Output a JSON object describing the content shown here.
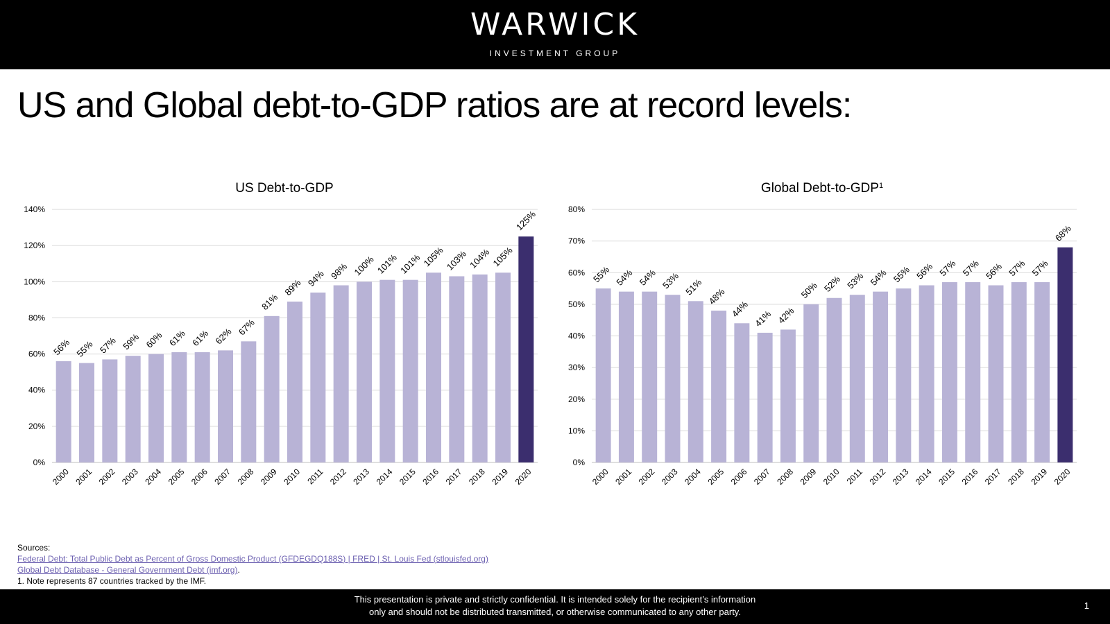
{
  "header": {
    "brand": "WARWICK",
    "sub_brand": "INVESTMENT GROUP"
  },
  "headline": "US and Global debt-to-GDP ratios are at record levels:",
  "colors": {
    "bar": "#b8b3d6",
    "highlight": "#3b2e6e",
    "grid": "#d9d9d9"
  },
  "chart_data": [
    {
      "type": "bar",
      "title": "US Debt-to-GDP",
      "categories": [
        "2000",
        "2001",
        "2002",
        "2003",
        "2004",
        "2005",
        "2006",
        "2007",
        "2008",
        "2009",
        "2010",
        "2011",
        "2012",
        "2013",
        "2014",
        "2015",
        "2016",
        "2017",
        "2018",
        "2019",
        "2020"
      ],
      "values": [
        56,
        55,
        57,
        59,
        60,
        61,
        61,
        62,
        67,
        81,
        89,
        94,
        98,
        100,
        101,
        101,
        105,
        103,
        104,
        105,
        125
      ],
      "data_labels": [
        "56%",
        "55%",
        "57%",
        "59%",
        "60%",
        "61%",
        "61%",
        "62%",
        "67%",
        "81%",
        "89%",
        "94%",
        "98%",
        "100%",
        "101%",
        "101%",
        "105%",
        "103%",
        "104%",
        "105%",
        "125%"
      ],
      "ylim": [
        0,
        140
      ],
      "yticks": [
        0,
        20,
        40,
        60,
        80,
        100,
        120,
        140
      ],
      "ytick_labels": [
        "0%",
        "20%",
        "40%",
        "60%",
        "80%",
        "100%",
        "120%",
        "140%"
      ],
      "highlight_category": "2020",
      "grid": true
    },
    {
      "type": "bar",
      "title": "Global Debt-to-GDP",
      "title_footnote": "1",
      "categories": [
        "2000",
        "2001",
        "2002",
        "2003",
        "2004",
        "2005",
        "2006",
        "2007",
        "2008",
        "2009",
        "2010",
        "2011",
        "2012",
        "2013",
        "2014",
        "2015",
        "2016",
        "2017",
        "2018",
        "2019",
        "2020"
      ],
      "values": [
        55,
        54,
        54,
        53,
        51,
        48,
        44,
        41,
        42,
        50,
        52,
        53,
        54,
        55,
        56,
        57,
        57,
        56,
        57,
        57,
        68
      ],
      "data_labels": [
        "55%",
        "54%",
        "54%",
        "53%",
        "51%",
        "48%",
        "44%",
        "41%",
        "42%",
        "50%",
        "52%",
        "53%",
        "54%",
        "55%",
        "56%",
        "57%",
        "57%",
        "56%",
        "57%",
        "57%",
        "68%"
      ],
      "ylim": [
        0,
        80
      ],
      "yticks": [
        0,
        10,
        20,
        30,
        40,
        50,
        60,
        70,
        80
      ],
      "ytick_labels": [
        "0%",
        "10%",
        "20%",
        "30%",
        "40%",
        "50%",
        "60%",
        "70%",
        "80%"
      ],
      "highlight_category": "2020",
      "grid": true
    }
  ],
  "sources": {
    "heading": "Sources:",
    "link1": "Federal Debt: Total Public Debt as Percent of Gross Domestic Product (GFDEGDQ188S) | FRED | St. Louis Fed (stlouisfed.org)",
    "link2": "Global Debt Database - General Government Debt (imf.org)",
    "link2_suffix": ".",
    "note": "1. Note represents 87 countries tracked by the IMF."
  },
  "footer": {
    "line1": "This presentation is private and strictly confidential. It is intended solely for the recipient’s information",
    "line2": "only and should not be distributed transmitted, or otherwise communicated to any other party.",
    "page_number": "1"
  }
}
